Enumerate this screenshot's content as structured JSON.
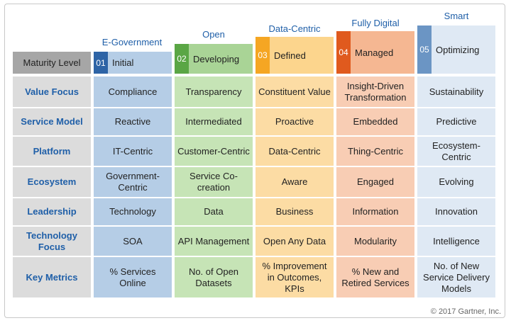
{
  "header": {
    "maturity_label": "Maturity Level"
  },
  "columns": [
    {
      "name": "E-Government",
      "num": "01",
      "level": "Initial",
      "num_color": "#2e64a6",
      "level_bg": "#b5cde6"
    },
    {
      "name": "Open",
      "num": "02",
      "level": "Developing",
      "num_color": "#5aa645",
      "level_bg": "#a9d496"
    },
    {
      "name": "Data-Centric",
      "num": "03",
      "level": "Defined",
      "num_color": "#f5a623",
      "level_bg": "#fcd58d"
    },
    {
      "name": "Fully Digital",
      "num": "04",
      "level": "Managed",
      "num_color": "#e05a1e",
      "level_bg": "#f5b792"
    },
    {
      "name": "Smart",
      "num": "05",
      "level": "Optimizing",
      "num_color": "#6b95c4",
      "level_bg": "#dfe9f4"
    }
  ],
  "rows": [
    {
      "label": "Value Focus",
      "cells": [
        "Compliance",
        "Transparency",
        "Constituent Value",
        "Insight-Driven Transformation",
        "Sustainability"
      ]
    },
    {
      "label": "Service Model",
      "cells": [
        "Reactive",
        "Intermediated",
        "Proactive",
        "Embedded",
        "Predictive"
      ]
    },
    {
      "label": "Platform",
      "cells": [
        "IT-Centric",
        "Customer-Centric",
        "Data-Centric",
        "Thing-Centric",
        "Ecosystem-Centric"
      ]
    },
    {
      "label": "Ecosystem",
      "cells": [
        "Government-Centric",
        "Service Co-creation",
        "Aware",
        "Engaged",
        "Evolving"
      ]
    },
    {
      "label": "Leadership",
      "cells": [
        "Technology",
        "Data",
        "Business",
        "Information",
        "Innovation"
      ]
    },
    {
      "label": "Technology Focus",
      "cells": [
        "SOA",
        "API Management",
        "Open Any Data",
        "Modularity",
        "Intelligence"
      ]
    },
    {
      "label": "Key Metrics",
      "cells": [
        "% Services Online",
        "No. of Open Datasets",
        "% Improvement in Outcomes, KPIs",
        "% New and Retired Services",
        "No. of New Service Delivery Models"
      ]
    }
  ],
  "footer": {
    "copyright": "© 2017 Gartner, Inc."
  }
}
